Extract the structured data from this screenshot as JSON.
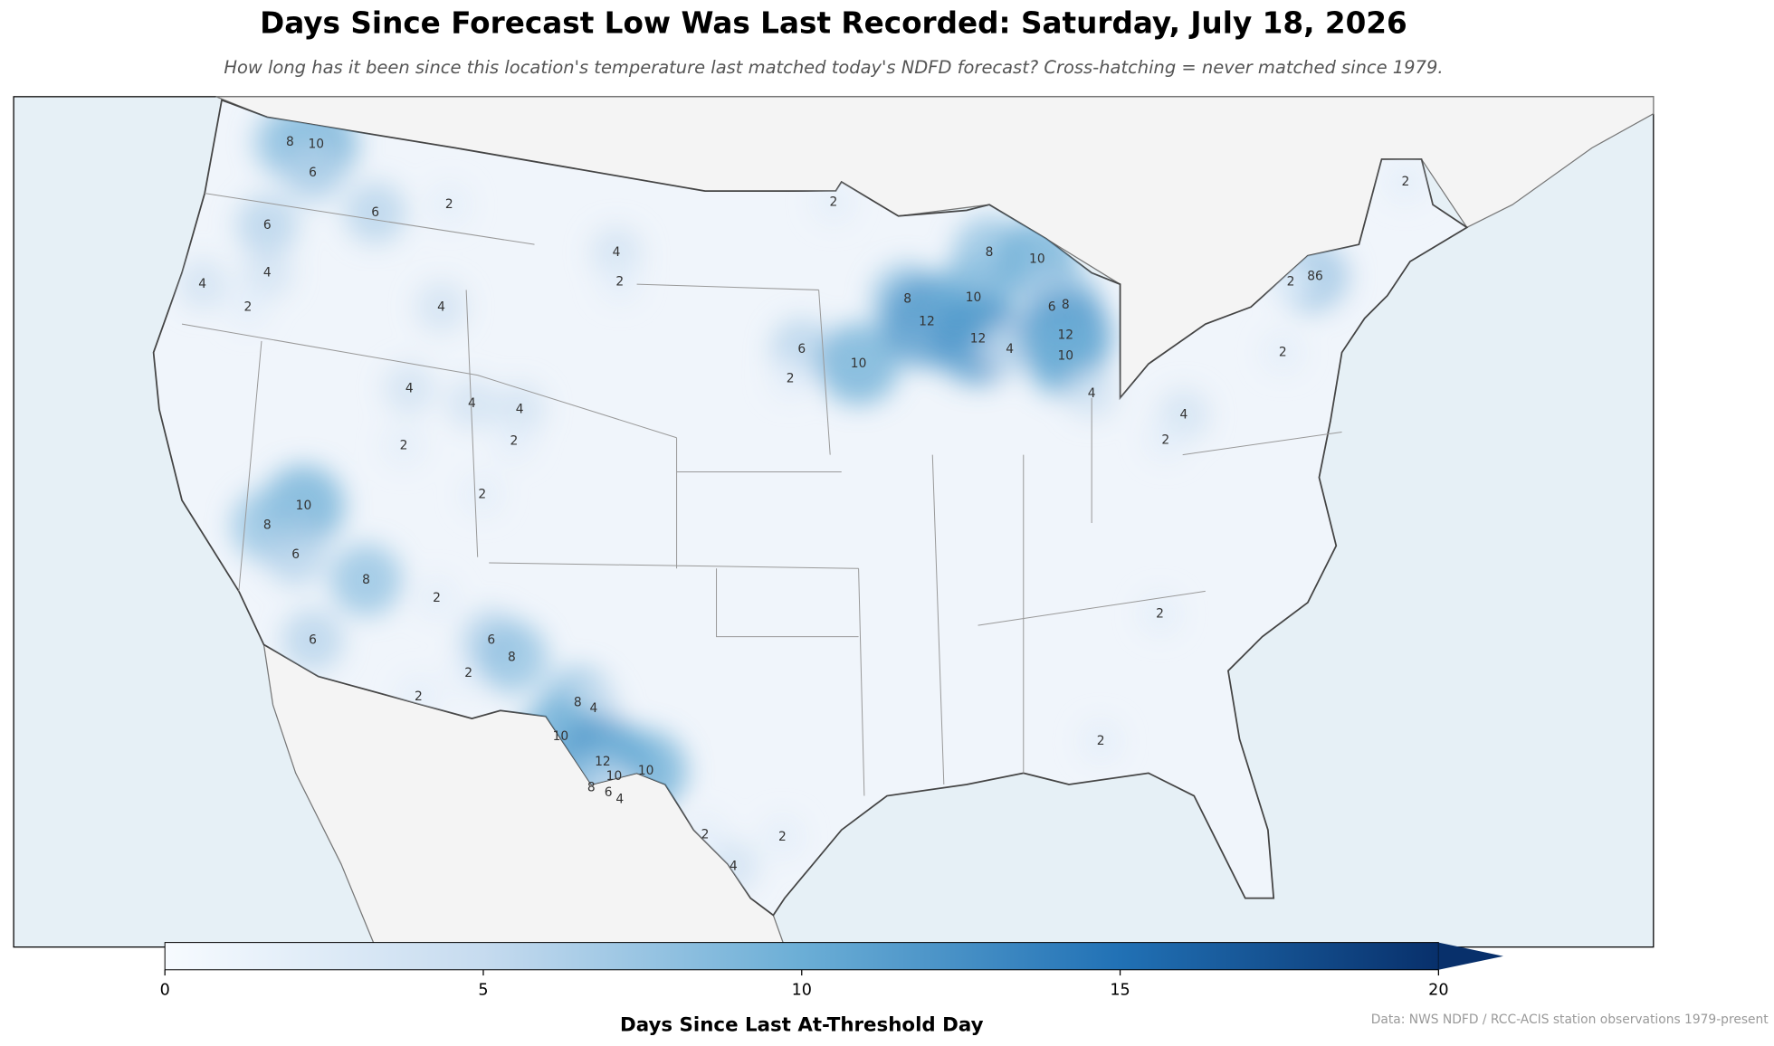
{
  "map": {
    "title": "Days Since Forecast Low Was Last Recorded: Saturday, July 18, 2026",
    "subtitle": "How long has it been since this location's temperature last matched today's NDFD forecast? Cross-hatching = never matched since 1979.",
    "contour_labels": [
      10,
      8,
      6,
      6,
      6,
      4,
      4,
      2,
      2,
      4,
      4,
      2,
      4,
      4,
      4,
      2,
      2,
      2,
      10,
      8,
      6,
      8,
      2,
      6,
      2,
      2,
      6,
      8,
      8,
      4,
      10,
      12,
      10,
      10,
      8,
      6,
      4,
      2,
      2,
      4,
      2,
      6,
      2,
      10,
      8,
      12,
      10,
      12,
      4,
      8,
      10,
      8,
      6,
      12,
      10,
      4,
      4,
      2,
      2,
      2,
      8,
      6,
      2,
      2,
      2
    ],
    "colorbar": {
      "label": "Days Since Last At-Threshold Day",
      "lim": [
        0,
        20
      ],
      "ticks": [
        0,
        5,
        10,
        15,
        20
      ],
      "extend": "max",
      "colors": [
        "#f7fbff",
        "#c6dbef",
        "#6baed6",
        "#2171b5",
        "#08306b"
      ]
    },
    "source": "Data: NWS NDFD / RCC-ACIS station observations 1979-present"
  }
}
